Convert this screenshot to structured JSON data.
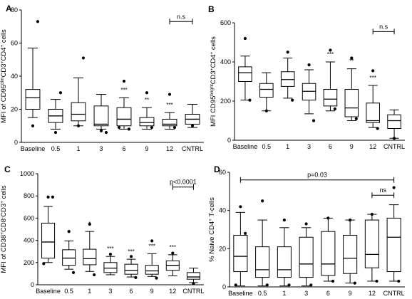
{
  "chart_data": [
    {
      "panel": "A",
      "type": "boxplot",
      "ylabel": "MFI of CD95dimCD3+CD4+ cells",
      "ylabel_parts": [
        {
          "t": "MFI of CD95",
          "sup": false
        },
        {
          "t": "dim",
          "sup": true
        },
        {
          "t": "CD3",
          "sup": false
        },
        {
          "t": "+",
          "sup": true
        },
        {
          "t": "CD4",
          "sup": false
        },
        {
          "t": "+",
          "sup": true
        },
        {
          "t": " cells",
          "sup": false
        }
      ],
      "ylim": [
        0,
        80
      ],
      "yticks": [
        0,
        20,
        40,
        60,
        80
      ],
      "categories": [
        "Baseline",
        "0.5",
        "1",
        "3",
        "6",
        "9",
        "12",
        "CNTRL"
      ],
      "boxes": [
        {
          "q1": 20,
          "median": 27,
          "q3": 32,
          "whisker_low": 15,
          "whisker_high": 57,
          "outliers": [
            10,
            73
          ]
        },
        {
          "q1": 12,
          "median": 16,
          "q3": 20,
          "whisker_low": 8,
          "whisker_high": 26,
          "outliers": [
            6,
            30
          ]
        },
        {
          "q1": 13,
          "median": 17,
          "q3": 24,
          "whisker_low": 10,
          "whisker_high": 39,
          "outliers": [
            10,
            51
          ]
        },
        {
          "q1": 10,
          "median": 11,
          "q3": 22,
          "whisker_low": 8,
          "whisker_high": 29,
          "outliers": [
            7,
            6
          ]
        },
        {
          "q1": 10,
          "median": 14,
          "q3": 21,
          "whisker_low": 8,
          "whisker_high": 27,
          "outliers": [
            37,
            8,
            9
          ]
        },
        {
          "q1": 10,
          "median": 12,
          "q3": 15,
          "whisker_low": 8,
          "whisker_high": 21,
          "outliers": [
            30,
            9
          ]
        },
        {
          "q1": 10,
          "median": 11,
          "q3": 14,
          "whisker_low": 8,
          "whisker_high": 18,
          "outliers": [
            29,
            9
          ]
        },
        {
          "q1": 11,
          "median": 14,
          "q3": 17,
          "whisker_low": 9,
          "whisker_high": 23,
          "outliers": [
            10
          ]
        }
      ],
      "significance": [
        "",
        "",
        "",
        "",
        "***",
        "**",
        "***",
        ""
      ],
      "brackets": [
        {
          "from": 6,
          "to": 7,
          "text": "n.s",
          "y": 73
        }
      ]
    },
    {
      "panel": "B",
      "type": "boxplot",
      "ylabel": "MFI CD95brightCD3+CD4+ cells",
      "ylabel_parts": [
        {
          "t": "MFI CD95",
          "sup": false
        },
        {
          "t": "bright",
          "sup": true
        },
        {
          "t": "CD3",
          "sup": false
        },
        {
          "t": "+",
          "sup": true
        },
        {
          "t": "CD4",
          "sup": false
        },
        {
          "t": "+",
          "sup": true
        },
        {
          "t": " cells",
          "sup": false
        }
      ],
      "ylim": [
        0,
        600
      ],
      "yticks": [
        0,
        200,
        400,
        600
      ],
      "categories": [
        "Baseline",
        "0.5",
        "1",
        "3",
        "6",
        "9",
        "12",
        "CNTRL"
      ],
      "boxes": [
        {
          "q1": 300,
          "median": 345,
          "q3": 375,
          "whisker_low": 205,
          "whisker_high": 430,
          "outliers": [
            520,
            205
          ]
        },
        {
          "q1": 220,
          "median": 260,
          "q3": 290,
          "whisker_low": 150,
          "whisker_high": 345,
          "outliers": [
            150
          ]
        },
        {
          "q1": 275,
          "median": 310,
          "q3": 350,
          "whisker_low": 215,
          "whisker_high": 420,
          "outliers": [
            450,
            205
          ]
        },
        {
          "q1": 205,
          "median": 250,
          "q3": 290,
          "whisker_low": 135,
          "whisker_high": 360,
          "outliers": [
            385,
            100
          ]
        },
        {
          "q1": 175,
          "median": 210,
          "q3": 260,
          "whisker_low": 150,
          "whisker_high": 400,
          "outliers": [
            460,
            160
          ]
        },
        {
          "q1": 120,
          "median": 165,
          "q3": 260,
          "whisker_low": 100,
          "whisker_high": 365,
          "outliers": [
            420,
            110
          ]
        },
        {
          "q1": 90,
          "median": 100,
          "q3": 190,
          "whisker_low": 65,
          "whisker_high": 280,
          "outliers": [
            355,
            60
          ]
        },
        {
          "q1": 60,
          "median": 100,
          "q3": 130,
          "whisker_low": 10,
          "whisker_high": 155,
          "outliers": [
            10
          ]
        }
      ],
      "significance": [
        "",
        "",
        "",
        "",
        "***",
        "**",
        "***",
        ""
      ],
      "brackets": [
        {
          "from": 6,
          "to": 7,
          "text": "n.s",
          "y": 555
        }
      ]
    },
    {
      "panel": "C",
      "type": "boxplot",
      "ylabel": "MFI of CD38+CD8-CD3+ cells",
      "ylabel_parts": [
        {
          "t": "MFI of CD38",
          "sup": false
        },
        {
          "t": "+",
          "sup": true
        },
        {
          "t": "CD8",
          "sup": false
        },
        {
          "t": "-",
          "sup": true
        },
        {
          "t": "CD3",
          "sup": false
        },
        {
          "t": "+",
          "sup": true
        },
        {
          "t": " cells",
          "sup": false
        }
      ],
      "ylim": [
        0,
        1000
      ],
      "yticks": [
        0,
        200,
        400,
        600,
        800,
        1000
      ],
      "categories": [
        "Baseline",
        "0.5",
        "1",
        "3",
        "6",
        "9",
        "12",
        "CNTRL"
      ],
      "boxes": [
        {
          "q1": 240,
          "median": 385,
          "q3": 555,
          "whisker_low": 200,
          "whisker_high": 705,
          "outliers": [
            790,
            790,
            190
          ]
        },
        {
          "q1": 175,
          "median": 240,
          "q3": 315,
          "whisker_low": 140,
          "whisker_high": 395,
          "outliers": [
            480,
            110
          ]
        },
        {
          "q1": 180,
          "median": 235,
          "q3": 320,
          "whisker_low": 120,
          "whisker_high": 480,
          "outliers": [
            545,
            90
          ]
        },
        {
          "q1": 110,
          "median": 150,
          "q3": 200,
          "whisker_low": 90,
          "whisker_high": 255,
          "outliers": [
            275
          ]
        },
        {
          "q1": 95,
          "median": 130,
          "q3": 185,
          "whisker_low": 70,
          "whisker_high": 230,
          "outliers": [
            255,
            65
          ]
        },
        {
          "q1": 95,
          "median": 125,
          "q3": 175,
          "whisker_low": 75,
          "whisker_high": 280,
          "outliers": [
            395,
            60
          ]
        },
        {
          "q1": 130,
          "median": 175,
          "q3": 215,
          "whisker_low": 80,
          "whisker_high": 270,
          "outliers": [
            285
          ]
        },
        {
          "q1": 50,
          "median": 70,
          "q3": 110,
          "whisker_low": 20,
          "whisker_high": 150,
          "outliers": [
            10
          ]
        }
      ],
      "significance": [
        "",
        "*",
        "*",
        "***",
        "***",
        "***",
        "***",
        ""
      ],
      "brackets": [
        {
          "from": 6,
          "to": 7,
          "text": "p<0.0001",
          "y": 880
        }
      ]
    },
    {
      "panel": "D",
      "type": "boxplot",
      "ylabel": "% Naive CD4+ T-cells",
      "ylabel_parts": [
        {
          "t": "% Naive CD4",
          "sup": false
        },
        {
          "t": "+",
          "sup": true
        },
        {
          "t": " T-cells",
          "sup": false
        }
      ],
      "ylim": [
        0,
        60
      ],
      "yticks": [
        0,
        20,
        40,
        60
      ],
      "categories": [
        "Baseline",
        "0.5",
        "1",
        "3",
        "6",
        "9",
        "12",
        "CNTRL"
      ],
      "boxes": [
        {
          "q1": 8,
          "median": 16,
          "q3": 27,
          "whisker_low": 0.5,
          "whisker_high": 39,
          "outliers": [
            42,
            28,
            1
          ]
        },
        {
          "q1": 5,
          "median": 9,
          "q3": 21,
          "whisker_low": 0.5,
          "whisker_high": 35,
          "outliers": [
            45,
            1
          ]
        },
        {
          "q1": 5,
          "median": 9,
          "q3": 21,
          "whisker_low": 0.5,
          "whisker_high": 31,
          "outliers": [
            35,
            1
          ]
        },
        {
          "q1": 5,
          "median": 12,
          "q3": 26,
          "whisker_low": 0.5,
          "whisker_high": 31,
          "outliers": [
            33,
            1
          ]
        },
        {
          "q1": 6,
          "median": 12,
          "q3": 29,
          "whisker_low": 3,
          "whisker_high": 36,
          "outliers": [
            36,
            3
          ]
        },
        {
          "q1": 7,
          "median": 15,
          "q3": 27,
          "whisker_low": 2,
          "whisker_high": 35,
          "outliers": [
            35,
            2
          ]
        },
        {
          "q1": 10,
          "median": 17,
          "q3": 35,
          "whisker_low": 3,
          "whisker_high": 38,
          "outliers": [
            38,
            3
          ]
        },
        {
          "q1": 8,
          "median": 26,
          "q3": 36,
          "whisker_low": 3,
          "whisker_high": 43,
          "outliers": [
            52,
            3
          ]
        }
      ],
      "significance": [
        "",
        "",
        "",
        "",
        "",
        "",
        "",
        ""
      ],
      "brackets": [
        {
          "from": 0,
          "to": 7,
          "text": "p=0.03",
          "y": 56
        },
        {
          "from": 6,
          "to": 7,
          "text": "ns",
          "y": 48
        }
      ]
    }
  ]
}
